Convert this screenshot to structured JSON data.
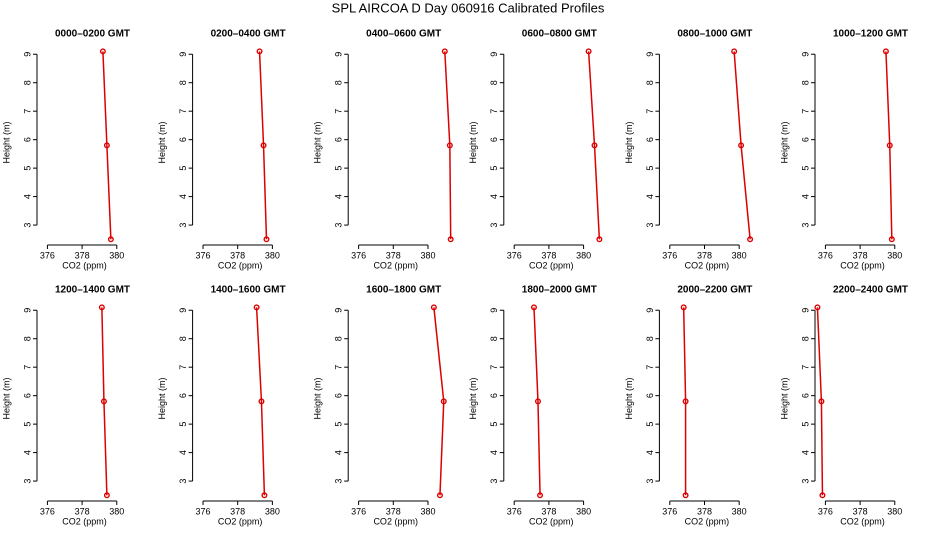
{
  "title": "SPL AIRCOA D  Day 060916  Calibrated Profiles",
  "chart_data": [
    {
      "type": "line",
      "title": "0000–0200 GMT",
      "xlabel": "CO2 (ppm)",
      "ylabel": "Height (m)",
      "x": [
        379.2,
        379.43,
        379.66
      ],
      "values": [
        9.1,
        5.8,
        2.5
      ],
      "color": "#dd0000",
      "xlim": [
        375.4,
        381.8
      ],
      "ylim": [
        2.3,
        9.5
      ],
      "xticks": [
        376,
        378,
        380
      ],
      "yticks": [
        3,
        4,
        5,
        6,
        7,
        8,
        9
      ]
    },
    {
      "type": "line",
      "title": "0200–0400 GMT",
      "xlabel": "CO2 (ppm)",
      "ylabel": "Height (m)",
      "x": [
        379.26,
        379.49,
        379.66
      ],
      "values": [
        9.1,
        5.8,
        2.5
      ],
      "color": "#dd0000",
      "xlim": [
        375.4,
        381.8
      ],
      "ylim": [
        2.3,
        9.5
      ],
      "xticks": [
        376,
        378,
        380
      ],
      "yticks": [
        3,
        4,
        5,
        6,
        7,
        8,
        9
      ]
    },
    {
      "type": "line",
      "title": "0400–0600 GMT",
      "xlabel": "CO2 (ppm)",
      "ylabel": "Height (m)",
      "x": [
        380.97,
        381.26,
        381.31
      ],
      "values": [
        9.1,
        5.8,
        2.5
      ],
      "color": "#dd0000",
      "xlim": [
        375.4,
        381.8
      ],
      "ylim": [
        2.3,
        9.5
      ],
      "xticks": [
        376,
        378,
        380
      ],
      "yticks": [
        3,
        4,
        5,
        6,
        7,
        8,
        9
      ]
    },
    {
      "type": "line",
      "title": "0600–0800 GMT",
      "xlabel": "CO2 (ppm)",
      "ylabel": "Height (m)",
      "x": [
        380.29,
        380.63,
        380.91
      ],
      "values": [
        9.1,
        5.8,
        2.5
      ],
      "color": "#dd0000",
      "xlim": [
        375.4,
        381.8
      ],
      "ylim": [
        2.3,
        9.5
      ],
      "xticks": [
        376,
        378,
        380
      ],
      "yticks": [
        3,
        4,
        5,
        6,
        7,
        8,
        9
      ]
    },
    {
      "type": "line",
      "title": "0800–1000 GMT",
      "xlabel": "CO2 (ppm)",
      "ylabel": "Height (m)",
      "x": [
        379.71,
        380.11,
        380.63
      ],
      "values": [
        9.1,
        5.8,
        2.5
      ],
      "color": "#dd0000",
      "xlim": [
        375.4,
        381.8
      ],
      "ylim": [
        2.3,
        9.5
      ],
      "xticks": [
        376,
        378,
        380
      ],
      "yticks": [
        3,
        4,
        5,
        6,
        7,
        8,
        9
      ]
    },
    {
      "type": "line",
      "title": "1000–1200 GMT",
      "xlabel": "CO2 (ppm)",
      "ylabel": "Height (m)",
      "x": [
        379.49,
        379.71,
        379.83
      ],
      "values": [
        9.1,
        5.8,
        2.5
      ],
      "color": "#dd0000",
      "xlim": [
        375.4,
        381.8
      ],
      "ylim": [
        2.3,
        9.5
      ],
      "xticks": [
        376,
        378,
        380
      ],
      "yticks": [
        3,
        4,
        5,
        6,
        7,
        8,
        9
      ]
    },
    {
      "type": "line",
      "title": "1200–1400 GMT",
      "xlabel": "CO2 (ppm)",
      "ylabel": "Height (m)",
      "x": [
        379.14,
        379.26,
        379.43
      ],
      "values": [
        9.1,
        5.8,
        2.5
      ],
      "color": "#dd0000",
      "xlim": [
        375.4,
        381.8
      ],
      "ylim": [
        2.3,
        9.5
      ],
      "xticks": [
        376,
        378,
        380
      ],
      "yticks": [
        3,
        4,
        5,
        6,
        7,
        8,
        9
      ]
    },
    {
      "type": "line",
      "title": "1400–1600 GMT",
      "xlabel": "CO2 (ppm)",
      "ylabel": "Height (m)",
      "x": [
        379.09,
        379.37,
        379.54
      ],
      "values": [
        9.1,
        5.8,
        2.5
      ],
      "color": "#dd0000",
      "xlim": [
        375.4,
        381.8
      ],
      "ylim": [
        2.3,
        9.5
      ],
      "xticks": [
        376,
        378,
        380
      ],
      "yticks": [
        3,
        4,
        5,
        6,
        7,
        8,
        9
      ]
    },
    {
      "type": "line",
      "title": "1600–1800 GMT",
      "xlabel": "CO2 (ppm)",
      "ylabel": "Height (m)",
      "x": [
        380.34,
        380.91,
        380.69
      ],
      "values": [
        9.1,
        5.8,
        2.5
      ],
      "color": "#dd0000",
      "xlim": [
        375.4,
        381.8
      ],
      "ylim": [
        2.3,
        9.5
      ],
      "xticks": [
        376,
        378,
        380
      ],
      "yticks": [
        3,
        4,
        5,
        6,
        7,
        8,
        9
      ]
    },
    {
      "type": "line",
      "title": "1800–2000 GMT",
      "xlabel": "CO2 (ppm)",
      "ylabel": "Height (m)",
      "x": [
        377.14,
        377.37,
        377.49
      ],
      "values": [
        9.1,
        5.8,
        2.5
      ],
      "color": "#dd0000",
      "xlim": [
        375.4,
        381.8
      ],
      "ylim": [
        2.3,
        9.5
      ],
      "xticks": [
        376,
        378,
        380
      ],
      "yticks": [
        3,
        4,
        5,
        6,
        7,
        8,
        9
      ]
    },
    {
      "type": "line",
      "title": "2000–2200 GMT",
      "xlabel": "CO2 (ppm)",
      "ylabel": "Height (m)",
      "x": [
        376.8,
        376.91,
        376.91
      ],
      "values": [
        9.1,
        5.8,
        2.5
      ],
      "color": "#dd0000",
      "xlim": [
        375.4,
        381.8
      ],
      "ylim": [
        2.3,
        9.5
      ],
      "xticks": [
        376,
        378,
        380
      ],
      "yticks": [
        3,
        4,
        5,
        6,
        7,
        8,
        9
      ]
    },
    {
      "type": "line",
      "title": "2200–2400 GMT",
      "xlabel": "CO2 (ppm)",
      "ylabel": "Height (m)",
      "x": [
        375.54,
        375.77,
        375.83
      ],
      "values": [
        9.1,
        5.8,
        2.5
      ],
      "color": "#dd0000",
      "xlim": [
        375.4,
        381.8
      ],
      "ylim": [
        2.3,
        9.5
      ],
      "xticks": [
        376,
        378,
        380
      ],
      "yticks": [
        3,
        4,
        5,
        6,
        7,
        8,
        9
      ]
    }
  ]
}
